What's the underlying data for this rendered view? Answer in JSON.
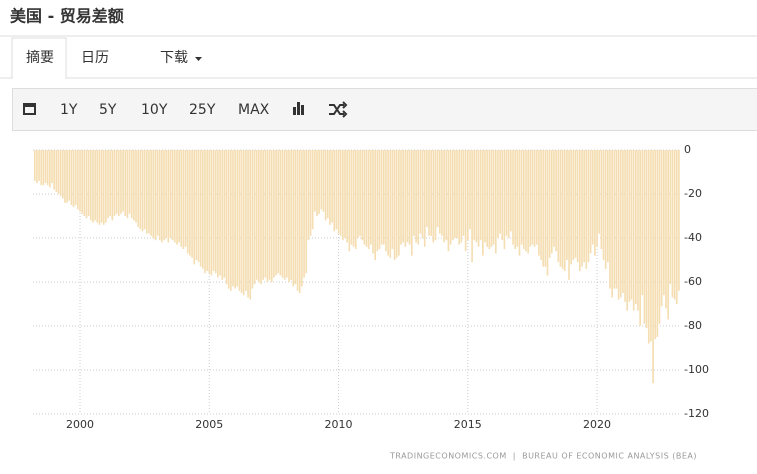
{
  "header": {
    "title": "美国 - 贸易差额"
  },
  "tabs": [
    "摘要",
    "日历",
    "下载"
  ],
  "toolbar": [
    "1Y",
    "5Y",
    "10Y",
    "25Y",
    "MAX"
  ],
  "chart_data": {
    "type": "bar",
    "source": "TRADINGECONOMICS.COM  |  BUREAU OF ECONOMIC ANALYSIS (BEA)",
    "color": "#f4ddb0",
    "grid": true,
    "ylim": [
      -120,
      0
    ],
    "yticks": [
      0,
      -20,
      -40,
      -60,
      -80,
      -100,
      -120
    ],
    "categories": [
      null,
      null,
      null,
      null,
      null,
      null,
      null,
      null,
      null,
      null,
      null,
      null,
      null,
      null,
      null,
      null,
      null,
      null,
      null,
      null,
      null,
      "2000",
      null,
      null,
      null,
      null,
      null,
      null,
      null,
      null,
      null,
      null,
      null,
      null,
      null,
      null,
      null,
      null,
      null,
      null,
      null,
      null,
      null,
      null,
      null,
      null,
      null,
      null,
      null,
      null,
      null,
      null,
      null,
      null,
      null,
      null,
      null,
      null,
      null,
      null,
      null,
      null,
      null,
      null,
      null,
      null,
      null,
      null,
      null,
      null,
      null,
      null,
      null,
      null,
      null,
      null,
      null,
      null,
      null,
      null,
      null,
      "2005",
      null,
      null,
      null,
      null,
      null,
      null,
      null,
      null,
      null,
      null,
      null,
      null,
      null,
      null,
      null,
      null,
      null,
      null,
      null,
      null,
      null,
      null,
      null,
      null,
      null,
      null,
      null,
      null,
      null,
      null,
      null,
      null,
      null,
      null,
      null,
      null,
      null,
      null,
      null,
      null,
      null,
      null,
      null,
      null,
      null,
      null,
      null,
      null,
      null,
      null,
      null,
      null,
      null,
      null,
      null,
      null,
      null,
      null,
      null,
      "2010",
      null,
      null,
      null,
      null,
      null,
      null,
      null,
      null,
      null,
      null,
      null,
      null,
      null,
      null,
      null,
      null,
      null,
      null,
      null,
      null,
      null,
      null,
      null,
      null,
      null,
      null,
      null,
      null,
      null,
      null,
      null,
      null,
      null,
      null,
      null,
      null,
      null,
      null,
      null,
      null,
      null,
      null,
      null,
      null,
      null,
      null,
      null,
      null,
      null,
      null,
      null,
      null,
      null,
      null,
      null,
      null,
      null,
      null,
      null,
      "2015",
      null,
      null,
      null,
      null,
      null,
      null,
      null,
      null,
      null,
      null,
      null,
      null,
      null,
      null,
      null,
      null,
      null,
      null,
      null,
      null,
      null,
      null,
      null,
      null,
      null,
      null,
      null,
      null,
      null,
      null,
      null,
      null,
      null,
      null,
      null,
      null,
      null,
      null,
      null,
      null,
      null,
      null,
      null,
      null,
      null,
      null,
      null,
      null,
      null,
      null,
      null,
      null,
      null,
      null,
      null,
      null,
      null,
      null,
      null,
      "2020",
      null,
      null,
      null,
      null,
      null,
      null,
      null,
      null,
      null,
      null,
      null,
      null,
      null,
      null,
      null,
      null,
      null,
      null,
      null,
      null,
      null,
      null,
      null,
      null,
      null,
      null,
      null,
      null,
      null,
      null,
      null,
      null,
      null,
      null,
      null,
      null,
      null,
      null
    ],
    "values": [
      -14,
      -15,
      -14,
      -16,
      -16,
      -15,
      -16,
      -17,
      -15,
      -18,
      -19,
      -20,
      -21,
      -22,
      -24,
      -24,
      -23,
      -25,
      -26,
      -25,
      -27,
      -28,
      -29,
      -30,
      -31,
      -30,
      -32,
      -33,
      -32,
      -33,
      -34,
      -33,
      -34,
      -33,
      -31,
      -30,
      -32,
      -30,
      -29,
      -30,
      -29,
      -28,
      -30,
      -31,
      -29,
      -31,
      -32,
      -33,
      -35,
      -36,
      -37,
      -36,
      -38,
      -38,
      -39,
      -40,
      -41,
      -39,
      -41,
      -42,
      -41,
      -40,
      -42,
      -40,
      -41,
      -42,
      -43,
      -42,
      -44,
      -45,
      -44,
      -47,
      -48,
      -49,
      -52,
      -50,
      -51,
      -53,
      -54,
      -56,
      -55,
      -56,
      -57,
      -55,
      -56,
      -58,
      -57,
      -59,
      -58,
      -61,
      -63,
      -64,
      -62,
      -63,
      -62,
      -64,
      -65,
      -66,
      -64,
      -67,
      -68,
      -63,
      -61,
      -59,
      -60,
      -61,
      -59,
      -58,
      -60,
      -59,
      -60,
      -58,
      -57,
      -56,
      -57,
      -58,
      -59,
      -58,
      -60,
      -59,
      -62,
      -61,
      -64,
      -65,
      -62,
      -58,
      -56,
      -41,
      -39,
      -36,
      -28,
      -30,
      -29,
      -27,
      -28,
      -32,
      -31,
      -34,
      -33,
      -37,
      -36,
      -38,
      -39,
      -41,
      -40,
      -42,
      -46,
      -43,
      -44,
      -45,
      -40,
      -39,
      -41,
      -43,
      -44,
      -45,
      -43,
      -47,
      -50,
      -46,
      -45,
      -43,
      -43,
      -46,
      -48,
      -49,
      -45,
      -50,
      -49,
      -48,
      -43,
      -42,
      -44,
      -42,
      -43,
      -48,
      -39,
      -42,
      -43,
      -38,
      -40,
      -44,
      -35,
      -39,
      -39,
      -42,
      -41,
      -35,
      -38,
      -39,
      -42,
      -41,
      -46,
      -43,
      -41,
      -40,
      -40,
      -43,
      -42,
      -39,
      -46,
      -41,
      -36,
      -51,
      -41,
      -42,
      -44,
      -41,
      -48,
      -42,
      -44,
      -45,
      -44,
      -43,
      -47,
      -40,
      -38,
      -41,
      -45,
      -39,
      -40,
      -37,
      -43,
      -45,
      -44,
      -48,
      -43,
      -45,
      -46,
      -47,
      -44,
      -43,
      -44,
      -43,
      -48,
      -50,
      -53,
      -53,
      -57,
      -49,
      -47,
      -44,
      -46,
      -51,
      -53,
      -54,
      -55,
      -50,
      -59,
      -52,
      -50,
      -49,
      -51,
      -55,
      -53,
      -51,
      -54,
      -51,
      -47,
      -43,
      -48,
      -44,
      -38,
      -45,
      -50,
      -54,
      -51,
      -63,
      -67,
      -63,
      -63,
      -68,
      -67,
      -65,
      -69,
      -73,
      -69,
      -68,
      -73,
      -70,
      -73,
      -80,
      -66,
      -79,
      -81,
      -88,
      -87,
      -106,
      -86,
      -85,
      -79,
      -71,
      -66,
      -72,
      -77,
      -61,
      -67,
      -68,
      -70,
      -64
    ]
  }
}
